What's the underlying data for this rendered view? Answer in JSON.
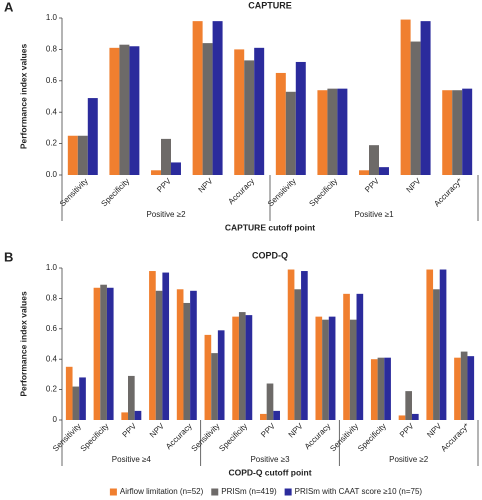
{
  "chart_data": [
    {
      "type": "bar",
      "panel_label": "A",
      "title": "CAPTURE",
      "ylabel": "Performance index values",
      "xlabel": "CAPTURE cutoff point",
      "categories": [
        "Sensitivity",
        "Specificity",
        "PPV",
        "NPV",
        "Accuracy",
        "Sensitivity",
        "Specificity",
        "PPV",
        "NPV",
        "Accuracy*"
      ],
      "groups": [
        "Positive ≥2",
        "Positive ≥1"
      ],
      "series": [
        {
          "color": "#f07f2f",
          "values": [
            0.25,
            0.81,
            0.03,
            0.98,
            0.8,
            0.65,
            0.54,
            0.03,
            0.99,
            0.54
          ]
        },
        {
          "color": "#6d6a68",
          "values": [
            0.25,
            0.83,
            0.23,
            0.84,
            0.73,
            0.53,
            0.55,
            0.19,
            0.85,
            0.54
          ]
        },
        {
          "color": "#2b2b9c",
          "values": [
            0.49,
            0.82,
            0.08,
            0.98,
            0.81,
            0.72,
            0.55,
            0.05,
            0.98,
            0.55
          ]
        }
      ],
      "ylim": [
        0,
        1.0
      ],
      "yticks": [
        {
          "value": 0,
          "label": "0.0"
        },
        0.2,
        0.4,
        0.6,
        0.8,
        {
          "value": 1.0,
          "label": "1.0"
        }
      ]
    },
    {
      "type": "bar",
      "panel_label": "B",
      "title": "COPD-Q",
      "ylabel": "Performance index values",
      "xlabel": "COPD-Q cutoff point",
      "categories": [
        "Sensitivity",
        "Specificity",
        "PPV",
        "NPV",
        "Accuracy",
        "Sensitivity",
        "Specificity",
        "PPV",
        "NPV",
        "Accuracy",
        "Sensitivity",
        "Specificity",
        "PPV",
        "NPV",
        "Accuracy*"
      ],
      "groups": [
        "Positive ≥4",
        "Positive ≥3",
        "Positive ≥2"
      ],
      "series": [
        {
          "name": "Airflow limitation (n=52)",
          "color": "#f07f2f",
          "values": [
            0.35,
            0.87,
            0.05,
            0.98,
            0.86,
            0.56,
            0.68,
            0.04,
            0.99,
            0.68,
            0.83,
            0.4,
            0.03,
            0.99,
            0.41
          ]
        },
        {
          "name": "PRISm (n=419)",
          "color": "#6d6a68",
          "values": [
            0.22,
            0.89,
            0.29,
            0.85,
            0.77,
            0.44,
            0.71,
            0.24,
            0.86,
            0.66,
            0.66,
            0.41,
            0.19,
            0.86,
            0.45
          ]
        },
        {
          "name": "PRISm with CAAT score ≥10 (n=75)",
          "color": "#2b2b9c",
          "values": [
            0.28,
            0.87,
            0.06,
            0.97,
            0.85,
            0.59,
            0.69,
            0.06,
            0.98,
            0.68,
            0.83,
            0.41,
            0.04,
            0.99,
            0.42
          ]
        }
      ],
      "ylim": [
        0,
        1.0
      ],
      "yticks": [
        0,
        0.2,
        0.4,
        0.6,
        0.8,
        {
          "value": 1.0,
          "label": "1.0"
        }
      ],
      "legend": "bottom"
    }
  ]
}
